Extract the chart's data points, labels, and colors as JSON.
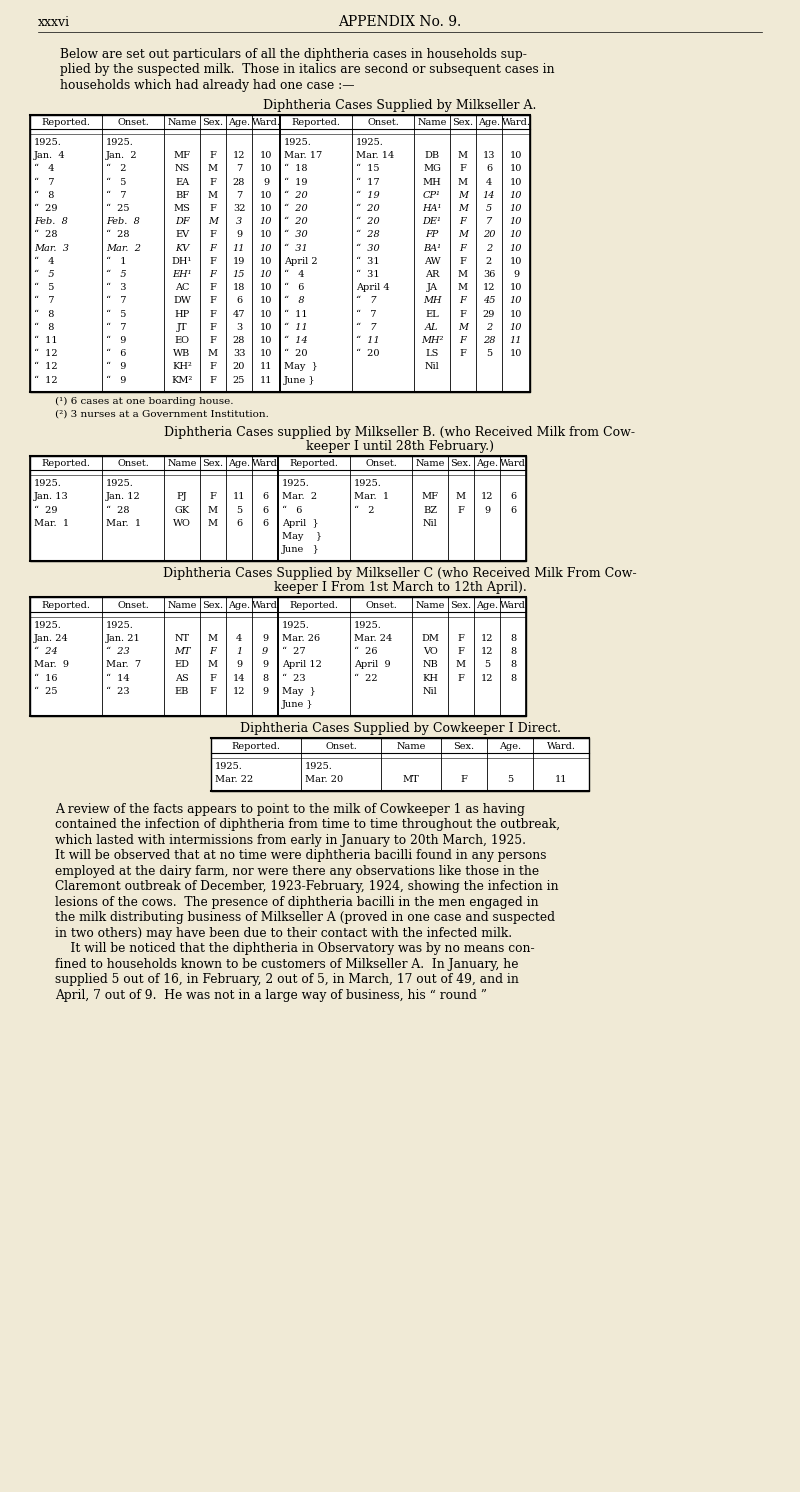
{
  "bg_color": "#f0ead6",
  "text_color": "#1a1a1a",
  "page_label": "xxxvi",
  "page_header": "APPENDIX No. 9.",
  "intro_text": "Below are set out particulars of all the diphtheria cases in households sup-\nplied by the suspected milk.  Those in italics are second or subsequent cases in\nhouseholds which had already had one case :—",
  "section_A_title": "Diphtheria Cases Supplied by Milkseller A.",
  "section_A_headers": [
    "Reported.",
    "Onset.",
    "Name",
    "Sex.",
    "Age.",
    "Ward.",
    "Reported.",
    "Onset.",
    "Name",
    "Sex.",
    "Age.",
    "Ward."
  ],
  "section_A_left": [
    [
      "1925.",
      "1925.",
      "",
      "",
      "",
      ""
    ],
    [
      "Jan.  4",
      "Jan.  2",
      "MF",
      "F",
      "12",
      "10"
    ],
    [
      "“   4",
      "“   2",
      "NS",
      "M",
      "7",
      "10"
    ],
    [
      "“   7",
      "“   5",
      "EA",
      "F",
      "28",
      "9"
    ],
    [
      "“   8",
      "“   7",
      "BF",
      "M",
      "7",
      "10"
    ],
    [
      "“  29",
      "“  25",
      "MS",
      "F",
      "32",
      "10"
    ],
    [
      "Feb.  8",
      "Feb.  8",
      "DF",
      "M",
      "3",
      "10"
    ],
    [
      "“  28",
      "“  28",
      "EV",
      "F",
      "9",
      "10"
    ],
    [
      "Mar.  3",
      "Mar.  2",
      "KV",
      "F",
      "11",
      "10"
    ],
    [
      "“   4",
      "“   1",
      "DH¹",
      "F",
      "19",
      "10"
    ],
    [
      "“   5",
      "“   5",
      "EH¹",
      "F",
      "15",
      "10"
    ],
    [
      "“   5",
      "“   3",
      "AC",
      "F",
      "18",
      "10"
    ],
    [
      "“   7",
      "“   7",
      "DW",
      "F",
      "6",
      "10"
    ],
    [
      "“   8",
      "“   5",
      "HP",
      "F",
      "47",
      "10"
    ],
    [
      "“   8",
      "“   7",
      "JT",
      "F",
      "3",
      "10"
    ],
    [
      "“  11",
      "“   9",
      "EO",
      "F",
      "28",
      "10"
    ],
    [
      "“  12",
      "“   6",
      "WB",
      "M",
      "33",
      "10"
    ],
    [
      "“  12",
      "“   9",
      "KH²",
      "F",
      "20",
      "11"
    ],
    [
      "“  12",
      "“   9",
      "KM²",
      "F",
      "25",
      "11"
    ]
  ],
  "section_A_left_italic": [
    false,
    false,
    false,
    false,
    false,
    false,
    true,
    false,
    true,
    false,
    true,
    false,
    false,
    false,
    false,
    false,
    false,
    false,
    false
  ],
  "section_A_right": [
    [
      "1925.",
      "1925.",
      "",
      "",
      "",
      ""
    ],
    [
      "Mar. 17",
      "Mar. 14",
      "DB",
      "M",
      "13",
      "10"
    ],
    [
      "“  18",
      "“  15",
      "MG",
      "F",
      "6",
      "10"
    ],
    [
      "“  19",
      "“  17",
      "MH",
      "M",
      "4",
      "10"
    ],
    [
      "“  20",
      "“  19",
      "CP¹",
      "M",
      "14",
      "10"
    ],
    [
      "“  20",
      "“  20",
      "HA¹",
      "M",
      "5",
      "10"
    ],
    [
      "“  20",
      "“  20",
      "DE¹",
      "F",
      "7",
      "10"
    ],
    [
      "“  30",
      "“  28",
      "FP",
      "M",
      "20",
      "10"
    ],
    [
      "“  31",
      "“  30",
      "BA¹",
      "F",
      "2",
      "10"
    ],
    [
      "April 2",
      "“  31",
      "AW",
      "F",
      "2",
      "10"
    ],
    [
      "“   4",
      "“  31",
      "AR",
      "M",
      "36",
      "9"
    ],
    [
      "“   6",
      "April 4",
      "JA",
      "M",
      "12",
      "10"
    ],
    [
      "“   8",
      "“   7",
      "MH",
      "F",
      "45",
      "10"
    ],
    [
      "“  11",
      "“   7",
      "EL",
      "F",
      "29",
      "10"
    ],
    [
      "“  11",
      "“   7",
      "AL",
      "M",
      "2",
      "10"
    ],
    [
      "“  14",
      "“  11",
      "MH²",
      "F",
      "28",
      "11"
    ],
    [
      "“  20",
      "“  20",
      "LS",
      "F",
      "5",
      "10"
    ],
    [
      "May  }",
      "",
      "Nil",
      "",
      "",
      ""
    ],
    [
      "June }",
      "",
      "",
      "",
      "",
      ""
    ]
  ],
  "section_A_right_italic": [
    false,
    false,
    false,
    false,
    true,
    true,
    true,
    true,
    true,
    false,
    false,
    false,
    true,
    false,
    true,
    true,
    false,
    false,
    false
  ],
  "section_A_footnotes": [
    "(¹) 6 cases at one boarding house.",
    "(²) 3 nurses at a Government Institution."
  ],
  "section_B_title": "Diphtheria Cases supplied by Milkseller B. (who Received Milk from Cow-\nkeeper I until 28th February.)",
  "section_B_headers": [
    "Reported.",
    "Onset.",
    "Name",
    "Sex.",
    "Age.",
    "Ward",
    "Reported.",
    "Onset.",
    "Name",
    "Sex.",
    "Age.",
    "Ward"
  ],
  "section_B_left": [
    [
      "1925.",
      "1925.",
      "",
      "",
      "",
      ""
    ],
    [
      "Jan. 13",
      "Jan. 12",
      "PJ",
      "F",
      "11",
      "6"
    ],
    [
      "“  29",
      "“  28",
      "GK",
      "M",
      "5",
      "6"
    ],
    [
      "Mar.  1",
      "Mar.  1",
      "WO",
      "M",
      "6",
      "6"
    ]
  ],
  "section_B_right": [
    [
      "1925.",
      "1925.",
      "",
      "",
      "",
      ""
    ],
    [
      "Mar.  2",
      "Mar.  1",
      "MF",
      "M",
      "12",
      "6"
    ],
    [
      "“   6",
      "“   2",
      "BZ",
      "F",
      "9",
      "6"
    ],
    [
      "April  }",
      "",
      "Nil",
      "",
      "",
      ""
    ],
    [
      "May    }",
      "",
      "",
      "",
      "",
      ""
    ],
    [
      "June   }",
      "",
      "",
      "",
      "",
      ""
    ]
  ],
  "section_C_title": "Diphtheria Cases Supplied by Milkseller C (who Received Milk From Cow-\nkeeper I From 1st March to 12th April).",
  "section_C_headers": [
    "Reported.",
    "Onset.",
    "Name",
    "Sex.",
    "Age.",
    "Ward",
    "Reported.",
    "Onset.",
    "Name",
    "Sex.",
    "Age.",
    "Ward"
  ],
  "section_C_left": [
    [
      "1925.",
      "1925.",
      "",
      "",
      "",
      ""
    ],
    [
      "Jan. 24",
      "Jan. 21",
      "NT",
      "M",
      "4",
      "9"
    ],
    [
      "“  24",
      "“  23",
      "MT",
      "F",
      "1",
      "9"
    ],
    [
      "Mar.  9",
      "Mar.  7",
      "ED",
      "M",
      "9",
      "9"
    ],
    [
      "“  16",
      "“  14",
      "AS",
      "F",
      "14",
      "8"
    ],
    [
      "“  25",
      "“  23",
      "EB",
      "F",
      "12",
      "9"
    ]
  ],
  "section_C_left_italic": [
    false,
    false,
    true,
    false,
    false,
    false
  ],
  "section_C_right": [
    [
      "1925.",
      "1925.",
      "",
      "",
      "",
      ""
    ],
    [
      "Mar. 26",
      "Mar. 24",
      "DM",
      "F",
      "12",
      "8"
    ],
    [
      "“  27",
      "“  26",
      "VO",
      "F",
      "12",
      "8"
    ],
    [
      "April 12",
      "April  9",
      "NB",
      "M",
      "5",
      "8"
    ],
    [
      "“  23",
      "“  22",
      "KH",
      "F",
      "12",
      "8"
    ],
    [
      "May  }",
      "",
      "Nil",
      "",
      "",
      ""
    ],
    [
      "June }",
      "",
      "",
      "",
      "",
      ""
    ]
  ],
  "section_D_title": "Diphtheria Cases Supplied by Cowkeeper I Direct.",
  "section_D_headers": [
    "Reported.",
    "Onset.",
    "Name",
    "Sex.",
    "Age.",
    "Ward."
  ],
  "section_D_data": [
    [
      "1925.",
      "1925.",
      "",
      "",
      "",
      ""
    ],
    [
      "Mar. 22",
      "Mar. 20",
      "MT",
      "F",
      "5",
      "11"
    ]
  ],
  "body_text": "A review of the facts appears to point to the milk of Cowkeeper 1 as having\ncontained the infection of diphtheria from time to time throughout the outbreak,\nwhich lasted with intermissions from early in January to 20th March, 1925.\nIt will be observed that at no time were diphtheria bacilli found in any persons\nemployed at the dairy farm, nor were there any observations like those in the\nClaremont outbreak of December, 1923-February, 1924, showing the infection in\nlesions of the cows.  The presence of diphtheria bacilli in the men engaged in\nthe milk distributing business of Milkseller A (proved in one case and suspected\nin two others) may have been due to their contact with the infected milk.\n    It will be noticed that the diphtheria in Observatory was by no means con-\nfined to households known to be customers of Milkseller A.  In January, he\nsupplied 5 out of 16, in February, 2 out of 5, in March, 17 out of 49, and in\nApril, 7 out of 9.  He was not in a large way of business, his “ round ”"
}
